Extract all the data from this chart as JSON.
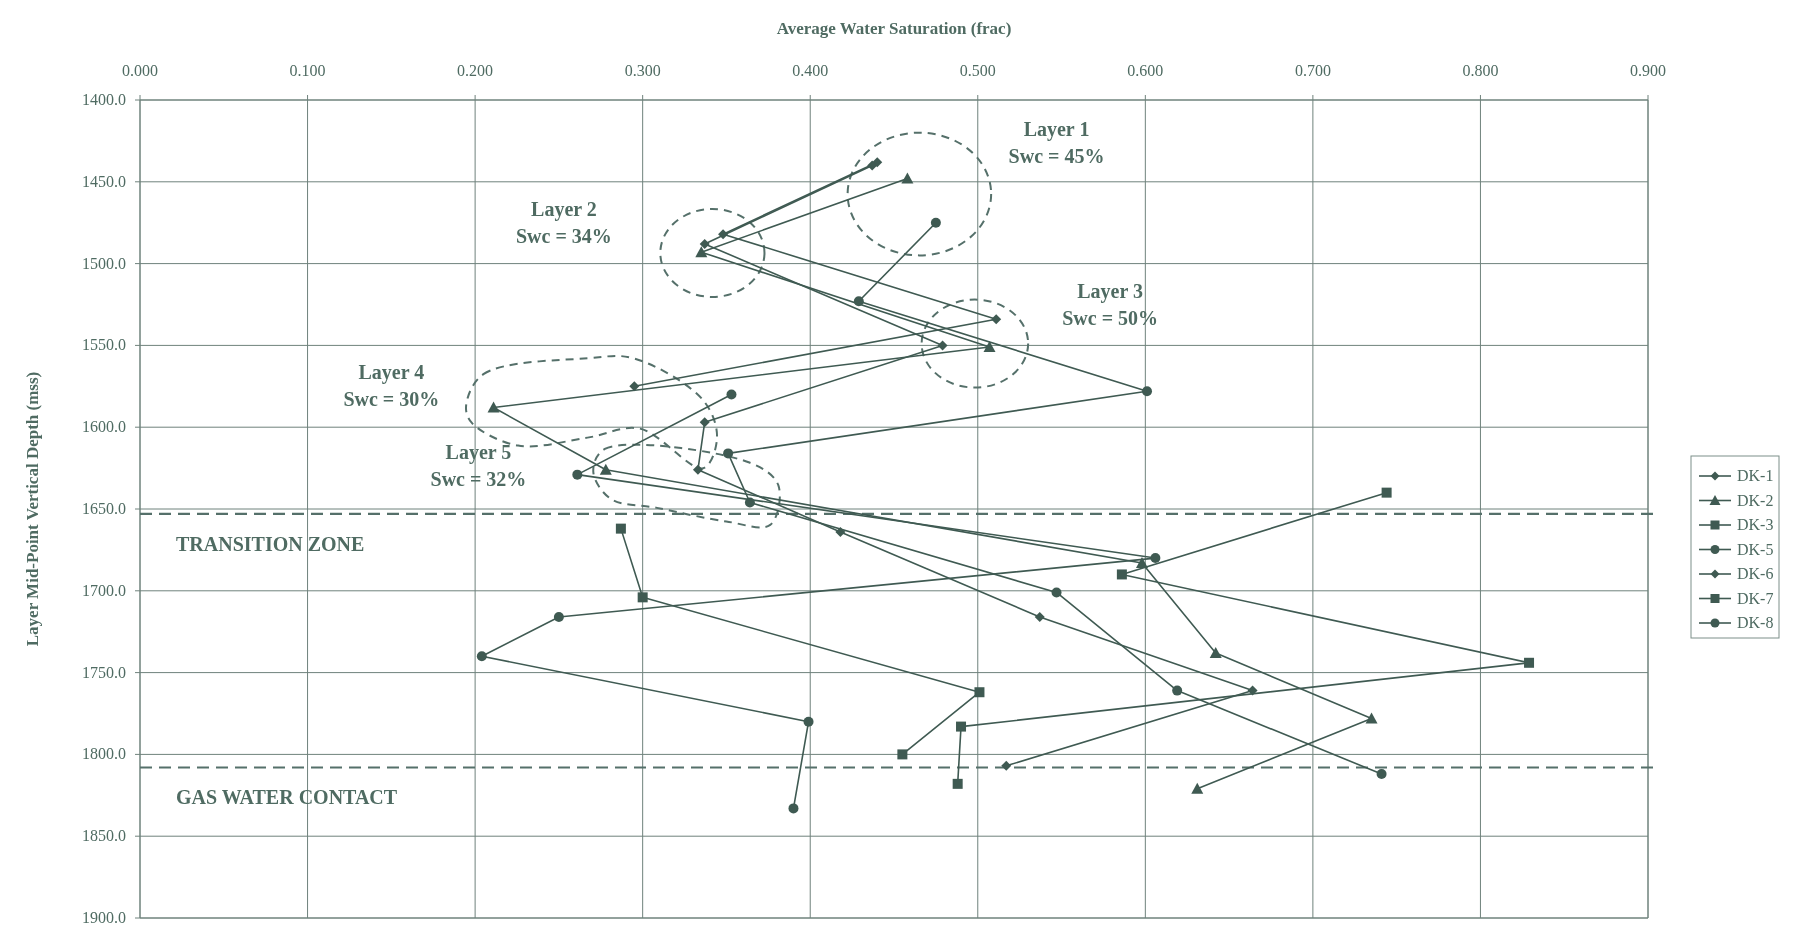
{
  "chart_data": {
    "type": "line",
    "xlabel": "Average Water Saturation (frac)",
    "ylabel": "Layer Mid-Point Vertical Depth (mss)",
    "xlim": [
      0,
      0.9
    ],
    "xticks": [
      {
        "value": 0,
        "label": "0.000"
      },
      {
        "value": 0.1,
        "label": "0.100"
      },
      {
        "value": 0.2,
        "label": "0.200"
      },
      {
        "value": 0.3,
        "label": "0.300"
      },
      {
        "value": 0.4,
        "label": "0.400"
      },
      {
        "value": 0.5,
        "label": "0.500"
      },
      {
        "value": 0.6,
        "label": "0.600"
      },
      {
        "value": 0.7,
        "label": "0.700"
      },
      {
        "value": 0.8,
        "label": "0.800"
      },
      {
        "value": 0.9,
        "label": "0.900"
      }
    ],
    "ylim": [
      1900,
      1400
    ],
    "yticks": [
      {
        "value": 1400,
        "label": "1400.0"
      },
      {
        "value": 1450,
        "label": "1450.0"
      },
      {
        "value": 1500,
        "label": "1500.0"
      },
      {
        "value": 1550,
        "label": "1550.0"
      },
      {
        "value": 1600,
        "label": "1600.0"
      },
      {
        "value": 1650,
        "label": "1650.0"
      },
      {
        "value": 1700,
        "label": "1700.0"
      },
      {
        "value": 1750,
        "label": "1750.0"
      },
      {
        "value": 1800,
        "label": "1800.0"
      },
      {
        "value": 1850,
        "label": "1850.0"
      },
      {
        "value": 1900,
        "label": "1900.0"
      }
    ],
    "grid": true,
    "legend": "right",
    "series": [
      {
        "name": "DK-1",
        "color": "#3f5a52",
        "marker": "diamond",
        "x": [
          0.44,
          0.348,
          0.511,
          0.295
        ],
        "values": [
          1438,
          1482,
          1534,
          1575
        ]
      },
      {
        "name": "DK-2",
        "color": "#3f5a52",
        "marker": "triangle",
        "x": [
          0.458,
          0.335,
          0.507,
          0.211,
          0.278,
          0.598,
          0.642,
          0.735,
          0.631
        ],
        "values": [
          1448,
          1493,
          1551,
          1588,
          1626,
          1683,
          1738,
          1778,
          1821
        ]
      },
      {
        "name": "DK-3",
        "color": "#3f5a52",
        "marker": "square",
        "x": [
          0.744,
          0.586,
          0.829,
          0.49,
          0.488
        ],
        "values": [
          1640,
          1690,
          1744,
          1783,
          1818
        ]
      },
      {
        "name": "DK-5",
        "color": "#3f5a52",
        "marker": "circle",
        "x": [
          0.475,
          0.429,
          0.601,
          0.351,
          0.364,
          0.547,
          0.619,
          0.741
        ],
        "values": [
          1475,
          1523,
          1578,
          1616,
          1646,
          1701,
          1761,
          1812
        ]
      },
      {
        "name": "DK-6",
        "color": "#3f5a52",
        "marker": "diamond",
        "x": [
          0.437,
          0.337,
          0.479,
          0.337,
          0.333,
          0.418,
          0.537,
          0.664,
          0.517
        ],
        "values": [
          1440,
          1488,
          1550,
          1597,
          1626,
          1664,
          1716,
          1761,
          1807
        ]
      },
      {
        "name": "DK-7",
        "color": "#3f5a52",
        "marker": "square",
        "x": [
          0.287,
          0.3,
          0.501,
          0.455
        ],
        "values": [
          1662,
          1704,
          1762,
          1800
        ]
      },
      {
        "name": "DK-8",
        "color": "#3f5a52",
        "marker": "circle",
        "x": [
          0.353,
          0.261,
          0.606,
          0.25,
          0.204,
          0.399,
          0.39
        ],
        "values": [
          1580,
          1629,
          1680,
          1716,
          1740,
          1780,
          1833
        ]
      }
    ],
    "ref_lines": [
      {
        "axis": "y",
        "value": 1653,
        "label": "TRANSITION ZONE",
        "color": "#55706a",
        "line_style": "dashed"
      },
      {
        "axis": "y",
        "value": 1808,
        "label": "GAS WATER CONTACT",
        "color": "#55706a",
        "line_style": "dashed"
      }
    ],
    "annotations": [
      "Layer 1\nSwc = 45%",
      "Layer 2\nSwc = 34%",
      "Layer 3\nSwc = 50%",
      "Layer 4\nSwc = 30%",
      "Layer 5\nSwc = 32%"
    ]
  }
}
